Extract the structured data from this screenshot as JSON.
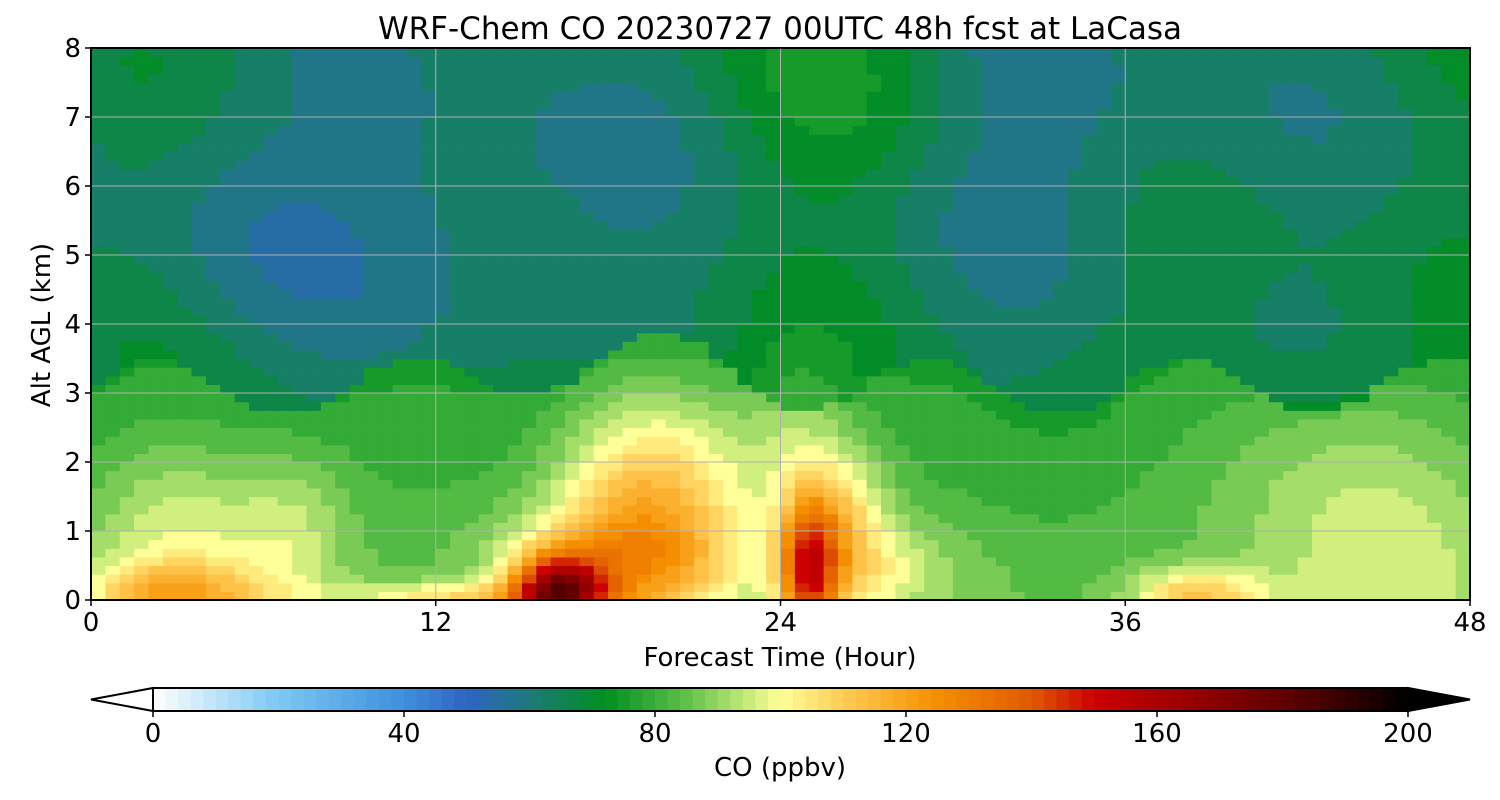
{
  "chart_data": {
    "type": "heatmap",
    "title": "WRF-Chem CO  20230727 00UTC 48h fcst at LaCasa",
    "xlabel": "Forecast Time (Hour)",
    "ylabel": "Alt AGL (km)",
    "xlim": [
      0,
      48
    ],
    "ylim": [
      0,
      8
    ],
    "xticks": [
      "0",
      "12",
      "24",
      "36",
      "48"
    ],
    "yticks": [
      "0",
      "1",
      "2",
      "3",
      "4",
      "5",
      "6",
      "7",
      "8"
    ],
    "grid": true,
    "colorbar": {
      "label": "CO  (ppbv)",
      "ticks": [
        "0",
        "40",
        "80",
        "120",
        "160",
        "200"
      ],
      "range": [
        0,
        200
      ],
      "extend": "both",
      "orientation": "horizontal",
      "stops": [
        {
          "v": 0,
          "c": "#ffffff"
        },
        {
          "v": 20,
          "c": "#7cc8f4"
        },
        {
          "v": 40,
          "c": "#3f8fdc"
        },
        {
          "v": 50,
          "c": "#2f64c4"
        },
        {
          "v": 60,
          "c": "#1d7a7a"
        },
        {
          "v": 72,
          "c": "#008f1f"
        },
        {
          "v": 85,
          "c": "#5fc04a"
        },
        {
          "v": 95,
          "c": "#c8ec7a"
        },
        {
          "v": 100,
          "c": "#ffff99"
        },
        {
          "v": 110,
          "c": "#ffcc55"
        },
        {
          "v": 125,
          "c": "#f58f00"
        },
        {
          "v": 140,
          "c": "#e05a00"
        },
        {
          "v": 150,
          "c": "#cc0000"
        },
        {
          "v": 165,
          "c": "#990000"
        },
        {
          "v": 185,
          "c": "#4d0000"
        },
        {
          "v": 200,
          "c": "#000000"
        }
      ]
    },
    "notes": "Approximate CO (ppbv) field: ~55-70 aloft (blue-green), ~75-90 in 0-3 km layer, plume >100 near 16-26 h below 3 km, surface maxima ~160-200 near 15-17 h and 24-25 h."
  }
}
